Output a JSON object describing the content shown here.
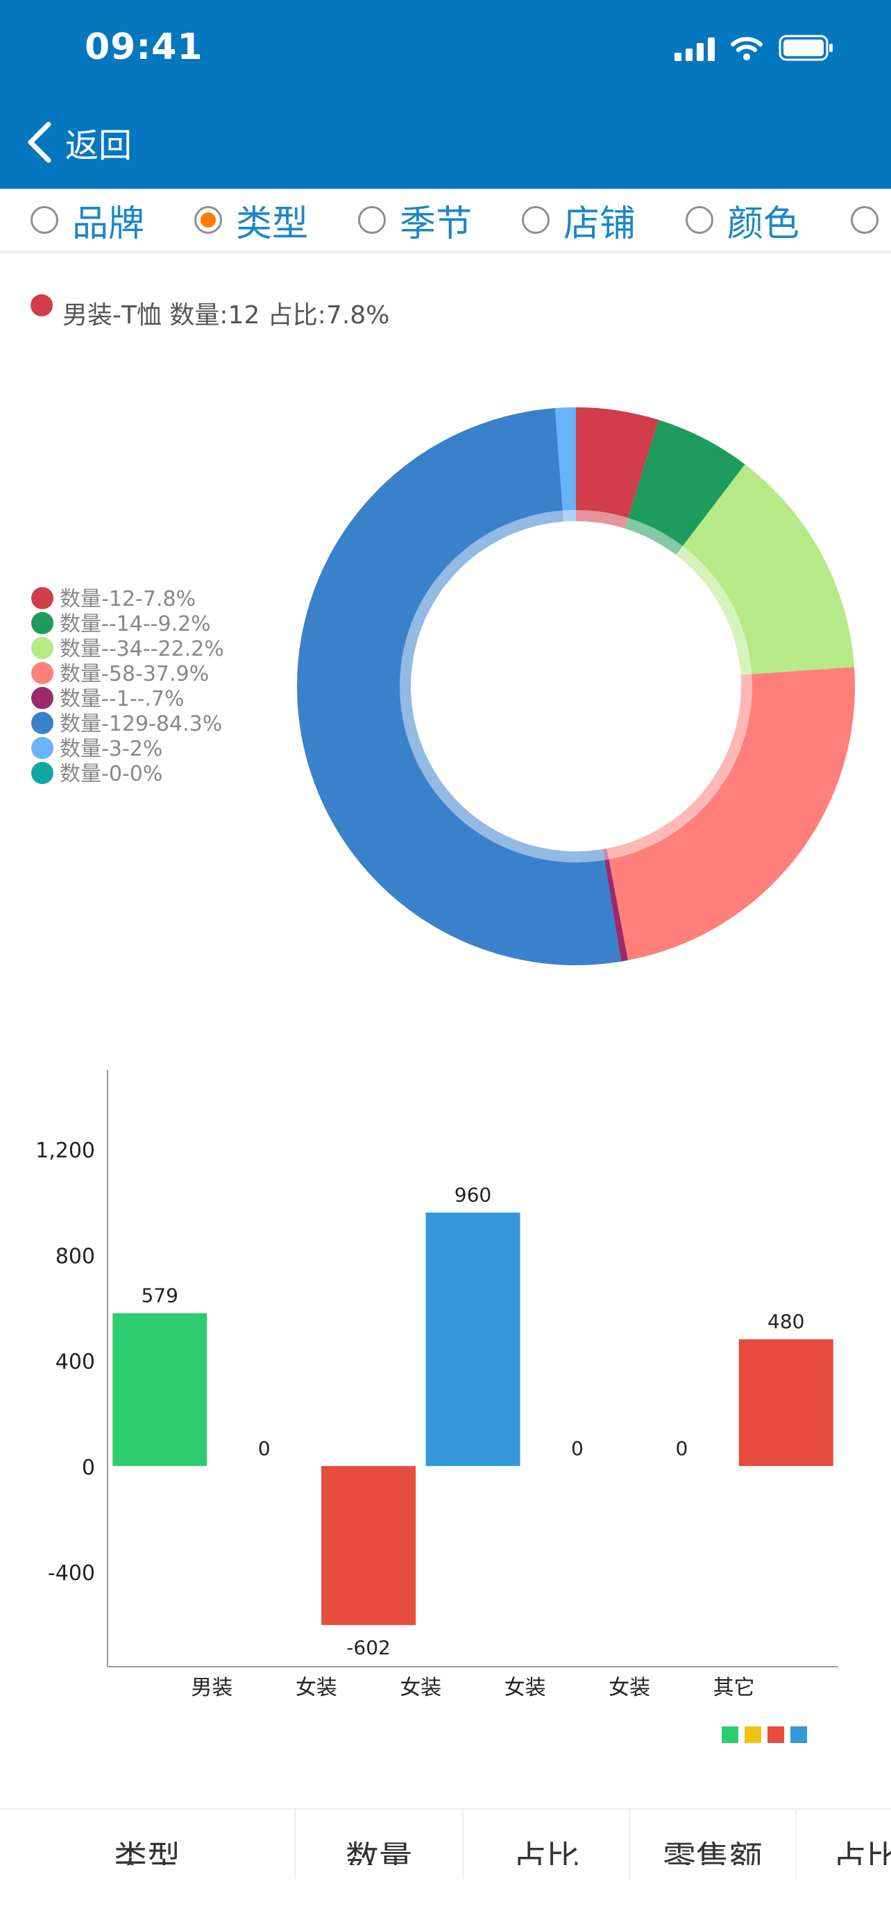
{
  "status_bar": {
    "time": "09:41"
  },
  "nav": {
    "back_label": "返回"
  },
  "tabs": [
    {
      "label": "品牌",
      "selected": false
    },
    {
      "label": "类型",
      "selected": true
    },
    {
      "label": "季节",
      "selected": false
    },
    {
      "label": "店铺",
      "selected": false
    },
    {
      "label": "颜色",
      "selected": false
    },
    {
      "label": "",
      "selected": false
    }
  ],
  "colors": {
    "header": "#0577bf",
    "radio_selected": "#ff7a00",
    "tab_text": "#1a86c7"
  },
  "chart_data": [
    {
      "type": "pie",
      "selection_label": "男装-T恤 数量:12 占比:7.8%",
      "selection_color": "#d13d4a",
      "slices": [
        {
          "label": "数量-12-7.8%",
          "value": 12,
          "color": "#d13d4a"
        },
        {
          "label": "数量--14--9.2%",
          "value": 14,
          "color": "#1e9b5f"
        },
        {
          "label": "数量--34--22.2%",
          "value": 34,
          "color": "#b5ea86"
        },
        {
          "label": "数量-58-37.9%",
          "value": 58,
          "color": "#ff7f7b"
        },
        {
          "label": "数量--1--.7%",
          "value": 1,
          "color": "#9b2a6a"
        },
        {
          "label": "数量-129-84.3%",
          "value": 129,
          "color": "#3a81cb"
        },
        {
          "label": "数量-3-2%",
          "value": 3,
          "color": "#69b3fa"
        },
        {
          "label": "数量-0-0%",
          "value": 0,
          "color": "#12a6a3"
        }
      ],
      "legend_position": "left"
    },
    {
      "type": "bar",
      "categories": [
        "",
        "男装",
        "女装",
        "女装",
        "女装",
        "女装",
        "其它"
      ],
      "series": [
        {
          "values": [
            579,
            0,
            -602,
            960,
            0,
            0,
            480
          ],
          "colors": [
            "#2ecc71",
            "#2ecc71",
            "#e74c3c",
            "#3498db",
            "#3498db",
            "#3498db",
            "#e74c3c"
          ]
        }
      ],
      "value_labels": [
        "579",
        "0",
        "-602",
        "960",
        "0",
        "0",
        "480"
      ],
      "y_ticks": [
        "1,200",
        "800",
        "400",
        "0",
        "-400"
      ],
      "y_tick_values": [
        1200,
        800,
        400,
        0,
        -400
      ],
      "ylim": [
        -760,
        1500
      ],
      "legend_colors": [
        "#2ecc71",
        "#f1c40f",
        "#e74c3c",
        "#3498db"
      ],
      "legend_position": "bottom-right"
    }
  ],
  "table": {
    "headers": [
      "类型",
      "数量",
      "占比",
      "零售额",
      "占比"
    ]
  }
}
